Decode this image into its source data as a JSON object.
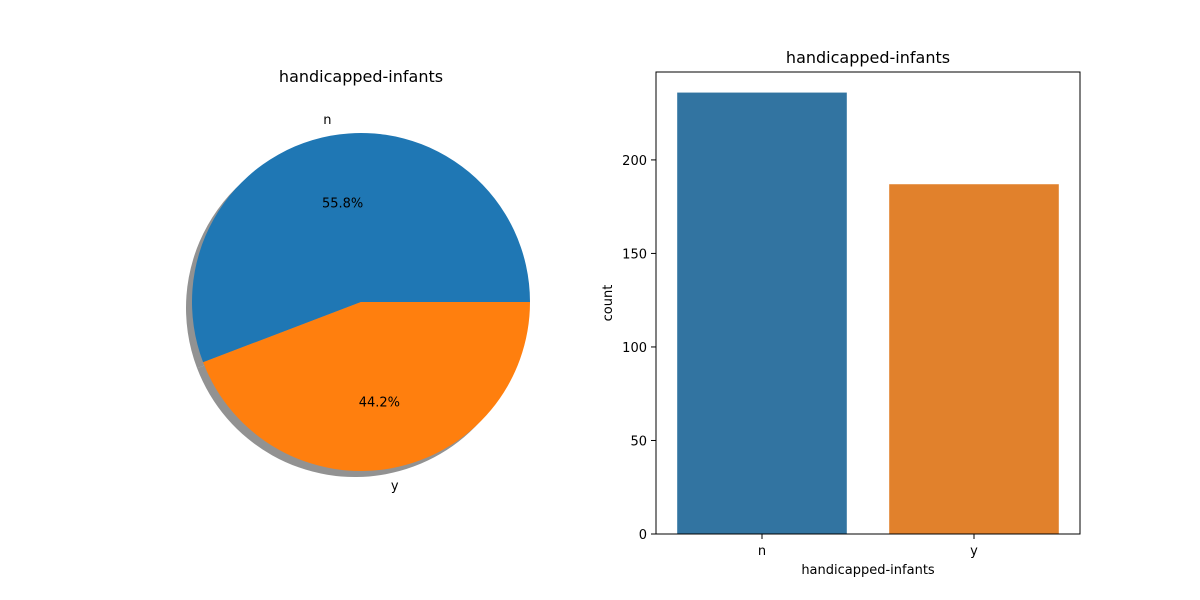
{
  "colors": {
    "pie_n": "#1f77b4",
    "pie_y": "#ff7f0e",
    "bar_n": "#3274a1",
    "bar_y": "#e1812c",
    "shadow": "#7f7f7f"
  },
  "chart_data": [
    {
      "type": "pie",
      "title": "handicapped-infants",
      "labels": [
        "n",
        "y"
      ],
      "values": [
        55.8,
        44.2
      ],
      "value_labels": [
        "55.8%",
        "44.2%"
      ],
      "start_angle_deg": 0,
      "shadow": true
    },
    {
      "type": "bar",
      "title": "handicapped-infants",
      "categories": [
        "n",
        "y"
      ],
      "values": [
        236,
        187
      ],
      "xlabel": "handicapped-infants",
      "ylabel": "count",
      "ylim": [
        0,
        247
      ],
      "yticks": [
        0,
        50,
        100,
        150,
        200
      ],
      "grid": false
    }
  ]
}
